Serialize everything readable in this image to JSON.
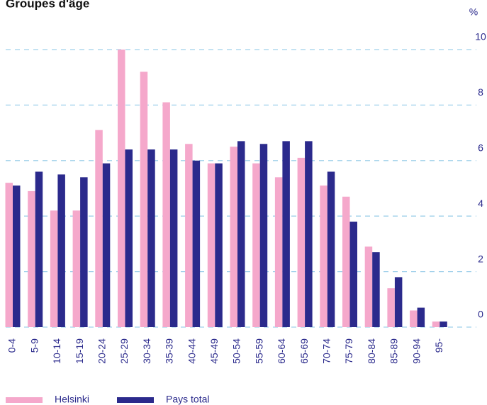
{
  "chart_data": {
    "type": "bar",
    "title": "Groupes d'âge",
    "y_unit": "%",
    "categories": [
      "0-4",
      "5-9",
      "10-14",
      "15-19",
      "20-24",
      "25-29",
      "30-34",
      "35-39",
      "40-44",
      "45-49",
      "50-54",
      "55-59",
      "60-64",
      "65-69",
      "70-74",
      "75-79",
      "80-84",
      "85-89",
      "90-94",
      "95-"
    ],
    "series": [
      {
        "name": "Helsinki",
        "color": "#f5a8cb",
        "values": [
          5.2,
          4.9,
          4.2,
          4.2,
          7.1,
          10.0,
          9.2,
          8.1,
          6.6,
          5.9,
          6.5,
          5.9,
          5.4,
          6.1,
          5.1,
          4.7,
          2.9,
          1.4,
          0.6,
          0.2
        ]
      },
      {
        "name": "Pays total",
        "color": "#2b2a8c",
        "values": [
          5.1,
          5.6,
          5.5,
          5.4,
          5.9,
          6.4,
          6.4,
          6.4,
          6.0,
          5.9,
          6.7,
          6.6,
          6.7,
          6.7,
          5.6,
          3.8,
          2.7,
          1.8,
          0.7,
          0.2
        ]
      }
    ],
    "ylim": [
      0,
      10
    ],
    "yticks": [
      0,
      2,
      4,
      6,
      8,
      10
    ],
    "grid": true
  }
}
